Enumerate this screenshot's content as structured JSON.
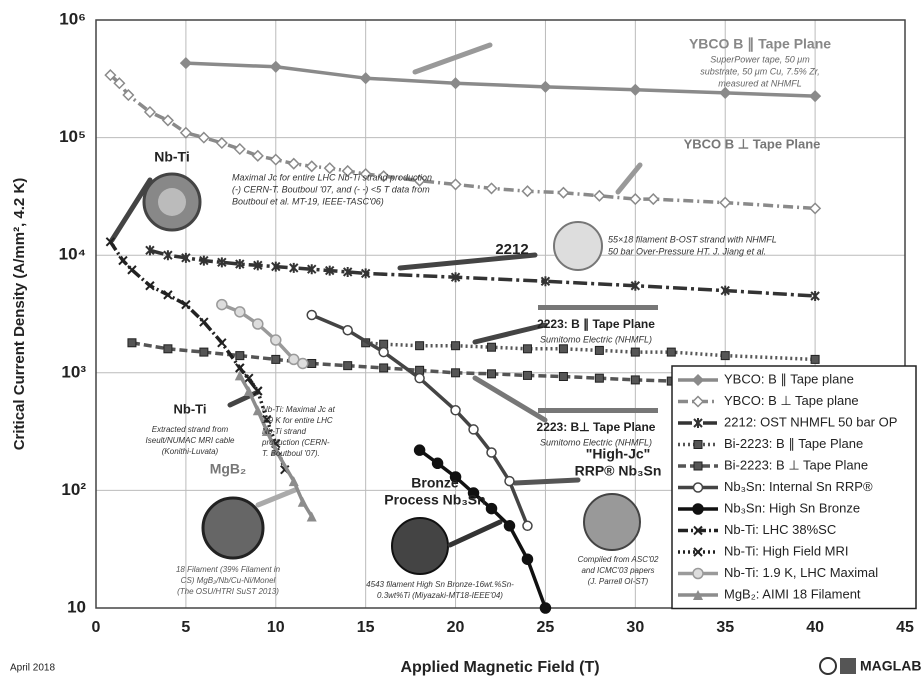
{
  "chart_data": {
    "type": "line",
    "log_y": true,
    "grid": true,
    "xlabel": "Applied Magnetic Field (T)",
    "ylabel": "Critical Current Density (A/mm², 4.2 K)",
    "xlim": [
      0,
      45
    ],
    "xticks": [
      0,
      5,
      10,
      15,
      20,
      25,
      30,
      35,
      40,
      45
    ],
    "ylim": [
      10,
      1000000
    ],
    "yticks": [
      10,
      {
        "value": 100,
        "label": "10²"
      },
      {
        "value": 1000,
        "label": "10³"
      },
      {
        "value": 10000,
        "label": "10⁴"
      },
      {
        "value": 100000,
        "label": "10⁵"
      },
      {
        "value": 1000000,
        "label": "10⁶"
      }
    ],
    "legend": "lower right",
    "series": [
      {
        "name": "YBCO: B ∥ Tape plane",
        "color": "#8a8a8a",
        "dash": "",
        "marker": "diamond",
        "x": [
          5,
          10,
          15,
          20,
          25,
          30,
          35,
          40
        ],
        "values": [
          430000,
          400000,
          320000,
          290000,
          270000,
          255000,
          240000,
          225000
        ]
      },
      {
        "name": "YBCO: B ⊥ Tape plane",
        "color": "#8a8a8a",
        "dash": "10 4 2 4",
        "marker": "diamond-open",
        "x": [
          0.8,
          1.3,
          1.8,
          3,
          4,
          5,
          6,
          7,
          8,
          9,
          10,
          11,
          12,
          13,
          14,
          15,
          16,
          18,
          20,
          22,
          24,
          26,
          28,
          30,
          31,
          35,
          40
        ],
        "values": [
          340000,
          290000,
          230000,
          165000,
          140000,
          110000,
          100000,
          90000,
          80000,
          70000,
          65000,
          60000,
          57000,
          55000,
          52000,
          49000,
          47000,
          43000,
          40000,
          37000,
          35000,
          34000,
          32000,
          30000,
          30000,
          28000,
          25000
        ]
      },
      {
        "name": "2212: OST NHMFL 50 bar OP",
        "color": "#333333",
        "dash": "14 4 3 4",
        "marker": "asterisk",
        "x": [
          3,
          4,
          5,
          6,
          7,
          8,
          9,
          10,
          11,
          12,
          13,
          14,
          15,
          20,
          25,
          30,
          35,
          40
        ],
        "values": [
          11000,
          10000,
          9500,
          9000,
          8700,
          8400,
          8200,
          8000,
          7800,
          7600,
          7400,
          7200,
          7000,
          6500,
          6000,
          5500,
          5000,
          4500
        ]
      },
      {
        "name": "Bi-2223: B ∥ Tape Plane",
        "color": "#555555",
        "dash": "2 3",
        "marker": "square",
        "x": [
          15,
          16,
          18,
          20,
          22,
          24,
          26,
          28,
          30,
          32,
          35,
          40
        ],
        "values": [
          1800,
          1750,
          1700,
          1700,
          1650,
          1600,
          1600,
          1550,
          1500,
          1500,
          1400,
          1300
        ]
      },
      {
        "name": "Bi-2223: B ⊥ Tape Plane",
        "color": "#555555",
        "dash": "8 4",
        "marker": "square",
        "x": [
          2,
          4,
          6,
          8,
          10,
          12,
          14,
          16,
          18,
          20,
          22,
          24,
          26,
          28,
          30,
          32
        ],
        "values": [
          1800,
          1600,
          1500,
          1400,
          1300,
          1200,
          1150,
          1100,
          1050,
          1000,
          980,
          950,
          930,
          900,
          870,
          850
        ]
      },
      {
        "name": "Nb₃Sn: Internal Sn RRP®",
        "color": "#444444",
        "dash": "",
        "marker": "circle-open",
        "x": [
          12,
          14,
          16,
          18,
          20,
          21,
          22,
          23,
          24
        ],
        "values": [
          3100,
          2300,
          1500,
          900,
          480,
          330,
          210,
          120,
          50
        ]
      },
      {
        "name": "Nb₃Sn: High Sn Bronze",
        "color": "#111111",
        "dash": "",
        "marker": "circle",
        "x": [
          18,
          19,
          20,
          21,
          22,
          23,
          24,
          25
        ],
        "values": [
          220,
          170,
          130,
          95,
          70,
          50,
          26,
          10
        ]
      },
      {
        "name": "Nb-Ti: LHC 38%SC",
        "color": "#222222",
        "dash": "10 3 2 3",
        "marker": "x",
        "x": [
          0.8,
          1.5,
          2,
          3,
          4,
          5,
          6,
          7,
          8,
          9
        ],
        "values": [
          13000,
          9000,
          7500,
          5500,
          4600,
          3800,
          2700,
          1800,
          1100,
          700
        ]
      },
      {
        "name": "Nb-Ti: High Field MRI",
        "color": "#222222",
        "dash": "2 3",
        "marker": "x",
        "x": [
          8,
          8.5,
          9,
          9.5,
          10,
          10.5
        ],
        "values": [
          1100,
          900,
          700,
          400,
          250,
          150
        ]
      },
      {
        "name": "Nb-Ti: 1.9 K, LHC Maximal",
        "color": "#9a9a9a",
        "dash": "",
        "marker": "circle-x",
        "x": [
          7,
          8,
          9,
          10,
          11,
          11.5
        ],
        "values": [
          3800,
          3300,
          2600,
          1900,
          1300,
          1200
        ]
      },
      {
        "name": "MgB₂: AIMI 18 Filament",
        "color": "#8c8c8c",
        "dash": "",
        "marker": "triangle",
        "x": [
          8,
          8.5,
          9,
          9.5,
          10,
          11,
          11.5,
          12
        ],
        "values": [
          950,
          700,
          480,
          320,
          220,
          120,
          80,
          60
        ]
      }
    ],
    "annotations": [
      [
        "YBCO B ∥ Tape Plane"
      ],
      [
        "SuperPower tape, 50 μm",
        "substrate, 50 μm Cu, 7.5% Zr,",
        "measured at NHMFL"
      ],
      [
        "YBCO B ⊥ Tape Plane"
      ],
      [
        "Nb-Ti"
      ],
      [
        "Maximal Jc for entire LHC Nb-Ti strand production",
        "(-) CERN-T. Boutboul '07, and (- -) <5 T data from",
        "Boutboul et al. MT-19, IEEE-TASC'06)"
      ],
      [
        "2212"
      ],
      [
        "55×18 filament B-OST strand with NHMFL",
        "50 bar Over-Pressure HT. J. Jiang et al."
      ],
      [
        "2223: B ∥ Tape Plane"
      ],
      [
        "Sumitomo Electric (NHMFL)"
      ],
      [
        "2223: B⊥ Tape Plane"
      ],
      [
        "Sumitomo Electric (NHMFL)"
      ],
      [
        "Nb-Ti"
      ],
      [
        "Extracted strand from",
        "Iseult/NUMAC MRI cable",
        "(Konithi-Luvata)"
      ],
      [
        "Nb-Ti: Maximal Jc at",
        "1.9 K for entire LHC",
        "Nb-Ti strand",
        "production (CERN-",
        "T. Boutboul '07)."
      ],
      [
        "MgB₂"
      ],
      [
        "18 Filament (39% Filament in",
        "CS) MgB₂/Nb/Cu-Ni/Monel",
        "(The OSU/HTRI SuST 2013)"
      ],
      [
        "Bronze",
        "Process Nb₃Sn"
      ],
      [
        "4543 filament High Sn Bronze-16wt.%Sn-",
        "0.3wt%Ti (Miyazaki-MT18-IEEE'04)"
      ],
      [
        "\"High-Jc\"",
        "RRP® Nb₃Sn"
      ],
      [
        "Compiled from ASC'02",
        "and ICMC'03 papers",
        "(J. Parrell OI-ST)"
      ]
    ]
  },
  "footer": {
    "date": "April 2018",
    "logo": "MAGLAB"
  }
}
